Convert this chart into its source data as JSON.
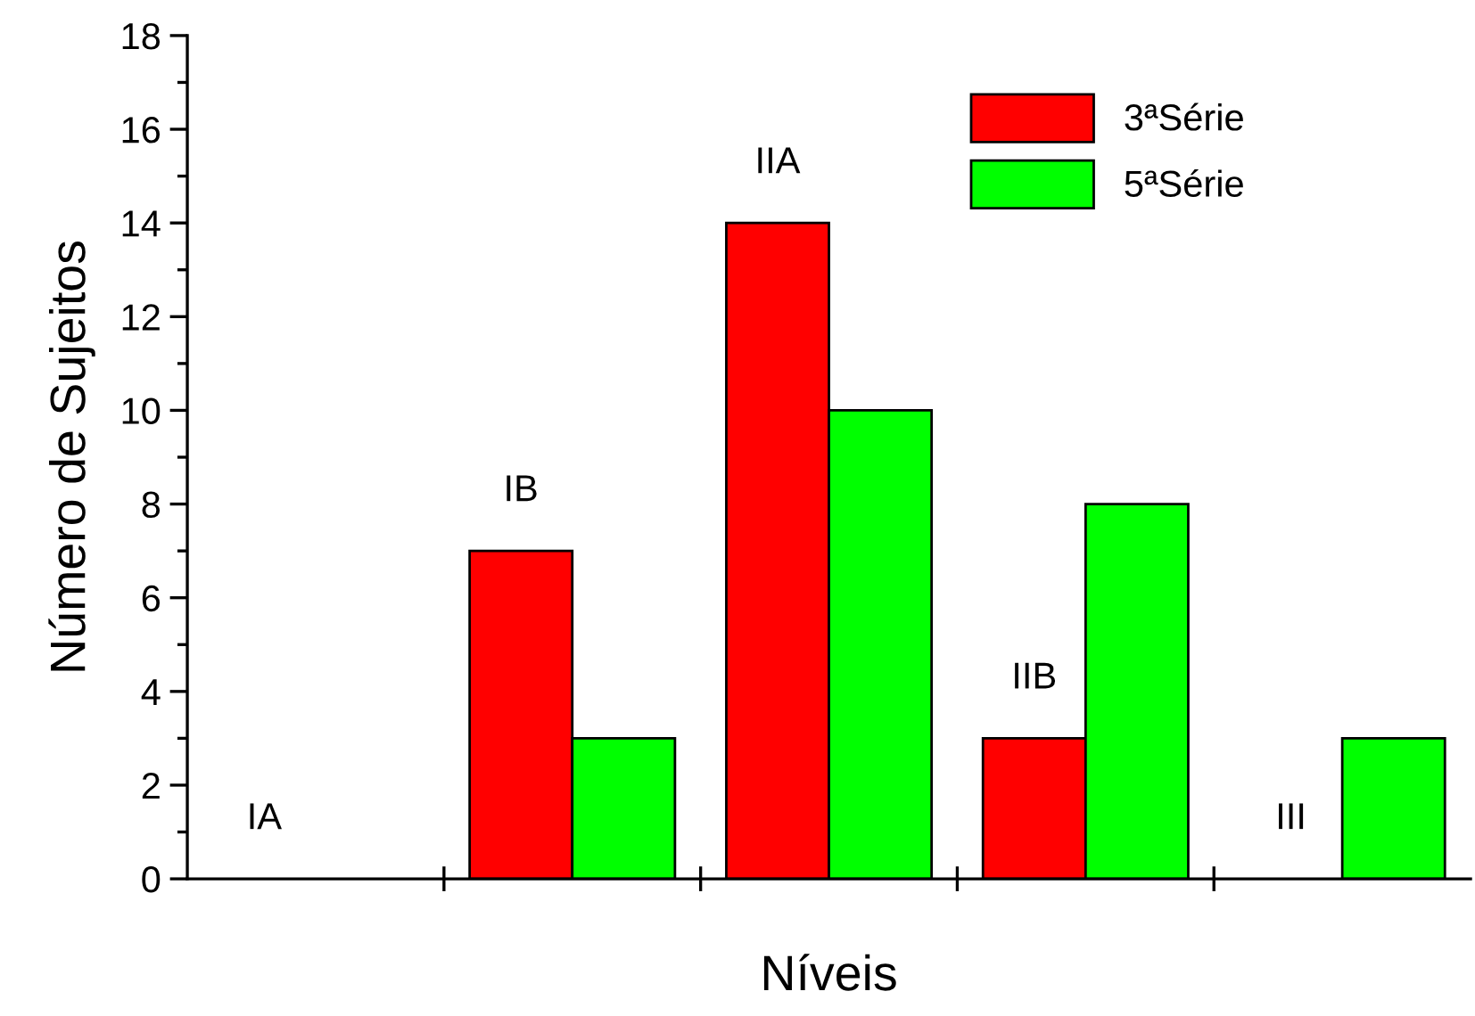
{
  "chart_data": {
    "type": "bar",
    "xlabel": "Níveis",
    "ylabel": "Número de Sujeitos",
    "categories": [
      "IA",
      "IB",
      "IIA",
      "IIB",
      "III"
    ],
    "series": [
      {
        "name": "3ªSérie",
        "color": "#ff0000",
        "values": [
          0,
          7,
          14,
          3,
          0
        ]
      },
      {
        "name": "5ªSérie",
        "color": "#00ff00",
        "values": [
          0,
          3,
          10,
          8,
          3
        ]
      }
    ],
    "ylim": [
      0,
      18
    ],
    "yticks": [
      0,
      2,
      4,
      6,
      8,
      10,
      12,
      14,
      16,
      18
    ],
    "grid": false,
    "legend": "top right"
  }
}
